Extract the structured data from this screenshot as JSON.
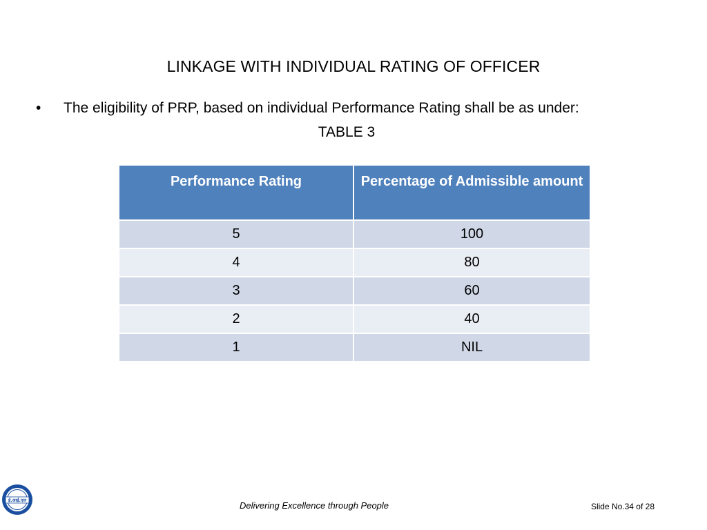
{
  "slide": {
    "title": "LINKAGE WITH INDIVIDUAL  RATING OF OFFICER",
    "bullet_symbol": "•",
    "bullet_text": "The eligibility of PRP, based on individual Performance Rating shall be as under:",
    "table_caption": "TABLE 3"
  },
  "table": {
    "headers": [
      "Performance Rating",
      "Percentage of Admissible amount"
    ],
    "rows": [
      [
        "5",
        "100"
      ],
      [
        "4",
        "80"
      ],
      [
        "3",
        "60"
      ],
      [
        "2",
        "40"
      ],
      [
        "1",
        "NIL"
      ]
    ]
  },
  "footer": {
    "tagline": "Delivering Excellence through People",
    "slide_number": "Slide No.34 of 28",
    "logo_text": "ई.आई.एल"
  },
  "colors": {
    "header_bg": "#4f81bd",
    "row_odd_bg": "#d0d8e8",
    "row_even_bg": "#e9edf4",
    "logo_blue": "#1a4fa0"
  }
}
